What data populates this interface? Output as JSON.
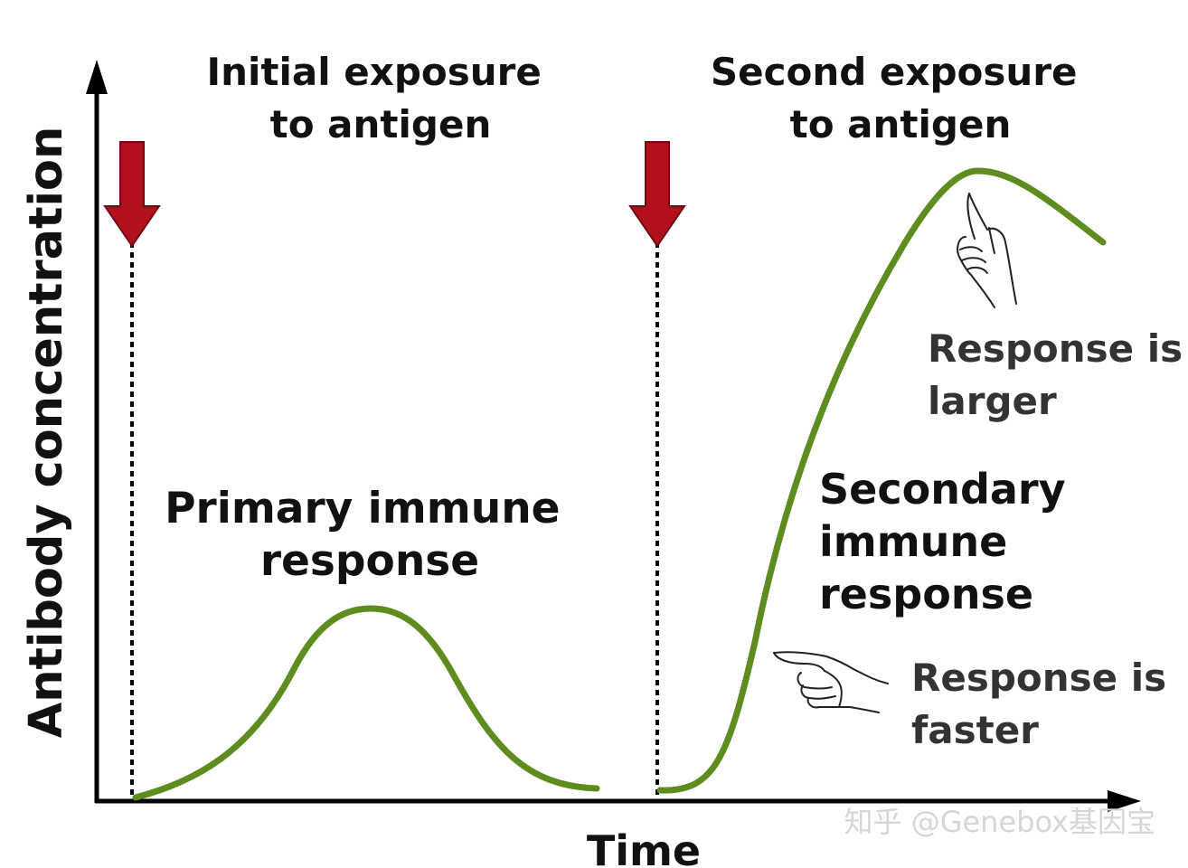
{
  "axes": {
    "y_label": "Antibody concentration",
    "x_label": "Time"
  },
  "exposures": {
    "first": {
      "line1": "Initial exposure",
      "line2": "to antigen"
    },
    "second": {
      "line1": "Second exposure",
      "line2": "to antigen"
    }
  },
  "responses": {
    "primary": {
      "line1": "Primary immune",
      "line2": "response"
    },
    "secondary": {
      "line1": "Secondary",
      "line2": "immune",
      "line3": "response"
    }
  },
  "annotations": {
    "larger": {
      "line1": "Response is",
      "line2": "larger"
    },
    "faster": {
      "line1": "Response is",
      "line2": "faster"
    }
  },
  "watermark": "知乎 @Genebox基因宝",
  "colors": {
    "curve": "#5e8c1f",
    "arrow": "#b3101e",
    "arrow_stroke": "#6e0a12",
    "text": "#111111",
    "annotation_text": "#333333",
    "axis": "#000000"
  },
  "icons": {
    "larger_hand": "hand-pointing-up-icon",
    "faster_hand": "hand-pointing-left-icon"
  }
}
